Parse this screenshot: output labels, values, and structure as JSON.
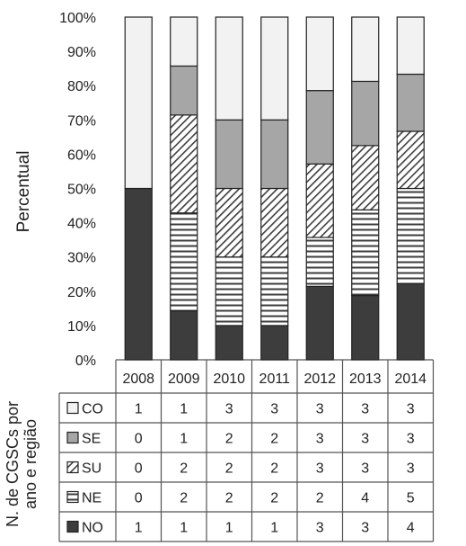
{
  "chart_data": {
    "type": "bar",
    "stacked": true,
    "percent": true,
    "ylabel": "Percentual",
    "table_title": "N. de CGSCs por ano e região",
    "ylim": [
      0,
      100
    ],
    "y_ticks": [
      "0%",
      "10%",
      "20%",
      "30%",
      "40%",
      "50%",
      "60%",
      "70%",
      "80%",
      "90%",
      "100%"
    ],
    "categories": [
      "2008",
      "2009",
      "2010",
      "2011",
      "2012",
      "2013",
      "2014"
    ],
    "series": [
      {
        "name": "NO",
        "values": [
          1,
          1,
          1,
          1,
          3,
          3,
          4
        ],
        "pattern": "solid",
        "color": "#3d3d3d"
      },
      {
        "name": "NE",
        "values": [
          0,
          2,
          2,
          2,
          2,
          4,
          5
        ],
        "pattern": "horizontal-lines",
        "color": "#3d3d3d"
      },
      {
        "name": "SU",
        "values": [
          0,
          2,
          2,
          2,
          3,
          3,
          3
        ],
        "pattern": "diagonal-hatch",
        "color": "#3d3d3d"
      },
      {
        "name": "SE",
        "values": [
          0,
          1,
          2,
          2,
          3,
          3,
          3
        ],
        "pattern": "solid",
        "color": "#a6a6a6"
      },
      {
        "name": "CO",
        "values": [
          1,
          1,
          3,
          3,
          3,
          3,
          3
        ],
        "pattern": "solid",
        "color": "#f2f2f2"
      }
    ],
    "table_row_order": [
      "CO",
      "SE",
      "SU",
      "NE",
      "NO"
    ]
  }
}
